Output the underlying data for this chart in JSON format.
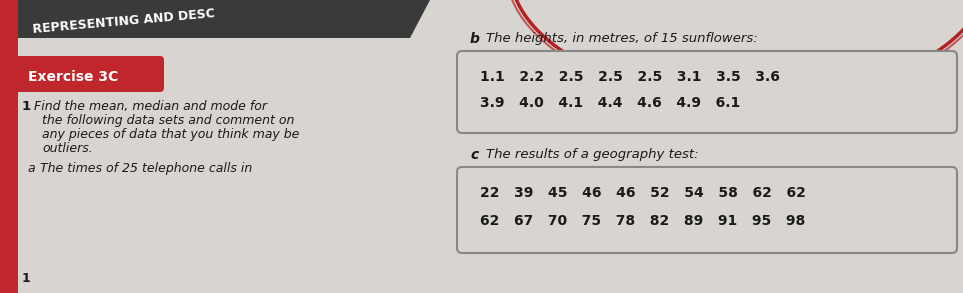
{
  "page_bg": "#d8d5d0",
  "left_red_bar_color": "#c0272d",
  "header_bg": "#3a3a3a",
  "header_text": "REPRESENTING AND DESC",
  "header_text_color": "#ffffff",
  "exercise_bg": "#c0272d",
  "exercise_label": "Exercise 3C",
  "exercise_text_color": "#ffffff",
  "arc_color": "#b52025",
  "q1_bold": "1",
  "q1_text_line1": "  Find the mean, median and mode for",
  "q1_text_line2": "   the following data sets and comment on",
  "q1_text_line3": "   any pieces of data that you think may be",
  "q1_text_line4": "   outliers.",
  "part_a_label": "a",
  "part_a_text": "  The times of 25 telephone calls in",
  "part_b_label": "b",
  "part_b_title": "  The heights, in metres, of 15 sunflowers:",
  "part_b_line1": "1.1   2.2   2.5   2.5   2.5   3.1   3.5   3.6",
  "part_b_line2": "3.9   4.0   4.1   4.4   4.6   4.9   6.1",
  "part_c_label": "c",
  "part_c_title": "  The results of a geography test:",
  "part_c_line1": "22   39   45   46   46   52   54   58   62   62",
  "part_c_line2": "62   67   70   75   78   82   89   91   95   98",
  "text_color": "#1a1a1a",
  "box_bg": "#d8d5d0",
  "box_border": "#888888",
  "bottom_num": "1"
}
